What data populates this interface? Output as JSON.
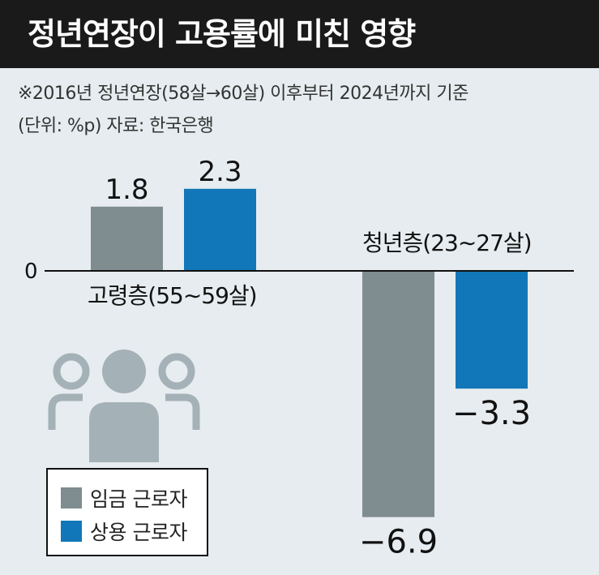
{
  "title": "정년연장이 고용률에 미친 영향",
  "notes": {
    "line1": "※2016년 정년연장(58살→60살) 이후부터 2024년까지 기준",
    "line2": "(단위: %p) 자료: 한국은행"
  },
  "colors": {
    "series_1": "#7f8c90",
    "series_2": "#1277b8",
    "background": "#e6ecef",
    "title_bar": "#1a1a1a",
    "icon": "#a4b1b7"
  },
  "icon": "people-group-icon",
  "legend": {
    "items": [
      {
        "label": "임금 근로자",
        "color": "#7f8c90"
      },
      {
        "label": "상용 근로자",
        "color": "#1277b8"
      }
    ]
  },
  "chart_data": {
    "type": "bar",
    "title": "정년연장이 고용률에 미친 영향",
    "categories": [
      "고령층(55∼59살)",
      "청년층(23∼27살)"
    ],
    "series": [
      {
        "name": "임금 근로자",
        "values": [
          1.8,
          -6.9
        ],
        "value_labels": [
          "1.8",
          "−6.9"
        ]
      },
      {
        "name": "상용 근로자",
        "values": [
          2.3,
          -3.3
        ],
        "value_labels": [
          "2.3",
          "−3.3"
        ]
      }
    ],
    "zero_label": "0",
    "ylim": [
      -7.5,
      2.6
    ],
    "grid": false,
    "legend": "bottom-left"
  }
}
